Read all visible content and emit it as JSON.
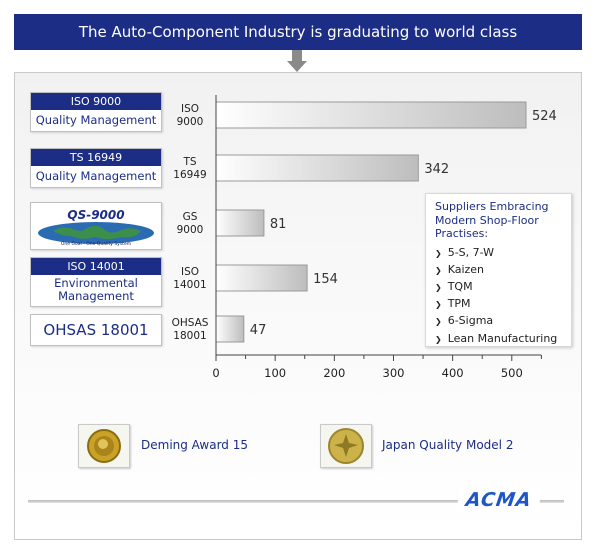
{
  "header": {
    "title": "The Auto-Component Industry is graduating to world class"
  },
  "certifications": [
    {
      "top": "ISO 9000",
      "bottom": "Quality Management"
    },
    {
      "top": "TS 16949",
      "bottom": "Quality Management"
    },
    {
      "logo_text": "QS-9000",
      "logo_subtext": "One Goal - One Quality System"
    },
    {
      "top": "ISO 14001",
      "bottom": "Environmental Management"
    },
    {
      "single": "OHSAS 18001"
    }
  ],
  "chart_data": {
    "type": "bar",
    "orientation": "horizontal",
    "categories": [
      [
        "ISO",
        "9000"
      ],
      [
        "TS",
        "16949"
      ],
      [
        "GS",
        "9000"
      ],
      [
        "ISO",
        "14001"
      ],
      [
        "OHSAS",
        "18001"
      ]
    ],
    "values": [
      524,
      342,
      81,
      154,
      47
    ],
    "data_labels": [
      "524",
      "342",
      "81",
      "154",
      "47"
    ],
    "xlim": [
      0,
      550
    ],
    "xticks": [
      0,
      100,
      200,
      300,
      400,
      500
    ],
    "grid": false
  },
  "callout": {
    "title": "Suppliers Embracing Modern Shop-Floor Practises:",
    "items": [
      "5-S, 7-W",
      "Kaizen",
      "TQM",
      "TPM",
      "6-Sigma",
      "Lean Manufacturing"
    ]
  },
  "awards": [
    {
      "label": "Deming Award 15",
      "icon": "medal-icon"
    },
    {
      "label": "Japan Quality Model 2",
      "icon": "medal-icon"
    }
  ],
  "logo": {
    "text": "ACMA"
  },
  "colors": {
    "navy": "#1c2d86",
    "bar_start": "#ffffff",
    "bar_end": "#bdbdbd",
    "logo_blue": "#1f56c6"
  }
}
